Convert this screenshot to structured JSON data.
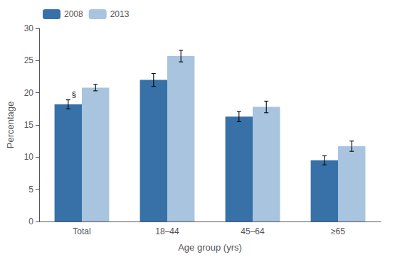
{
  "chart_data": {
    "type": "bar",
    "categories": [
      "Total",
      "18–44",
      "45–64",
      "≥65"
    ],
    "series": [
      {
        "name": "2008",
        "color": "#3771A8",
        "values": [
          18.2,
          22.0,
          16.3,
          9.5
        ],
        "errors": [
          0.7,
          1.0,
          0.8,
          0.7
        ]
      },
      {
        "name": "2013",
        "color": "#A8C4DE",
        "values": [
          20.8,
          25.7,
          17.8,
          11.7
        ],
        "errors": [
          0.5,
          0.9,
          0.9,
          0.8
        ]
      }
    ],
    "xlabel": "Age group (yrs)",
    "ylabel": "Percentage",
    "ylim": [
      0,
      30
    ],
    "yticks": [
      0,
      5,
      10,
      15,
      20,
      25,
      30
    ],
    "legend": "upper left",
    "grid": false,
    "annotations": [
      {
        "text": "§",
        "series": "2008",
        "category": "Total"
      }
    ]
  }
}
